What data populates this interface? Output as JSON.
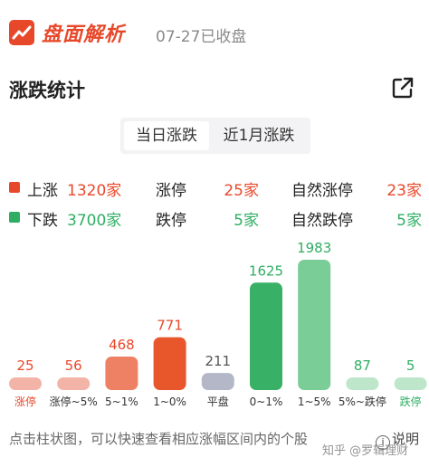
{
  "header": {
    "logo_text": "盘面解析",
    "date_status": "07-27已收盘"
  },
  "section": {
    "title": "涨跌统计",
    "share_icon": "share-external-icon"
  },
  "tabs": [
    {
      "label": "当日涨跌",
      "active": true
    },
    {
      "label": "近1月涨跌",
      "active": false
    }
  ],
  "stats": [
    {
      "color": "#e8482a",
      "label": "上涨",
      "count": "1320家",
      "limit_label": "涨停",
      "limit_value": "25家",
      "natural_label": "自然涨停",
      "natural_value": "23家"
    },
    {
      "color": "#2fae63",
      "label": "下跌",
      "count": "3700家",
      "limit_label": "跌停",
      "limit_value": "5家",
      "natural_label": "自然跌停",
      "natural_value": "5家"
    }
  ],
  "chart_data": {
    "type": "bar",
    "categories": [
      "涨停",
      "涨停~5%",
      "5~1%",
      "1~0%",
      "平盘",
      "0~1%",
      "1~5%",
      "5%~跌停",
      "跌停"
    ],
    "values": [
      25,
      56,
      468,
      771,
      211,
      1625,
      1983,
      87,
      5
    ],
    "colors": [
      "#f3b4a7",
      "#f3b4a7",
      "#ee8164",
      "#e8572c",
      "#b4b7c8",
      "#38b066",
      "#7bcd97",
      "#bde6ca",
      "#bde6ca"
    ],
    "label_colors": [
      "#e8482a",
      "#e8482a",
      "#e8482a",
      "#e8482a",
      "#555555",
      "#2fae63",
      "#2fae63",
      "#2fae63",
      "#2fae63"
    ],
    "category_label_colors": [
      "#e8482a",
      "#333333",
      "#333333",
      "#333333",
      "#333333",
      "#333333",
      "#333333",
      "#333333",
      "#2fae63"
    ]
  },
  "footer": {
    "hint": "点击柱状图，可以快速查看相应涨幅区间内的个股",
    "explain_label": "说明",
    "watermark": "知乎 @罗辑理财"
  }
}
